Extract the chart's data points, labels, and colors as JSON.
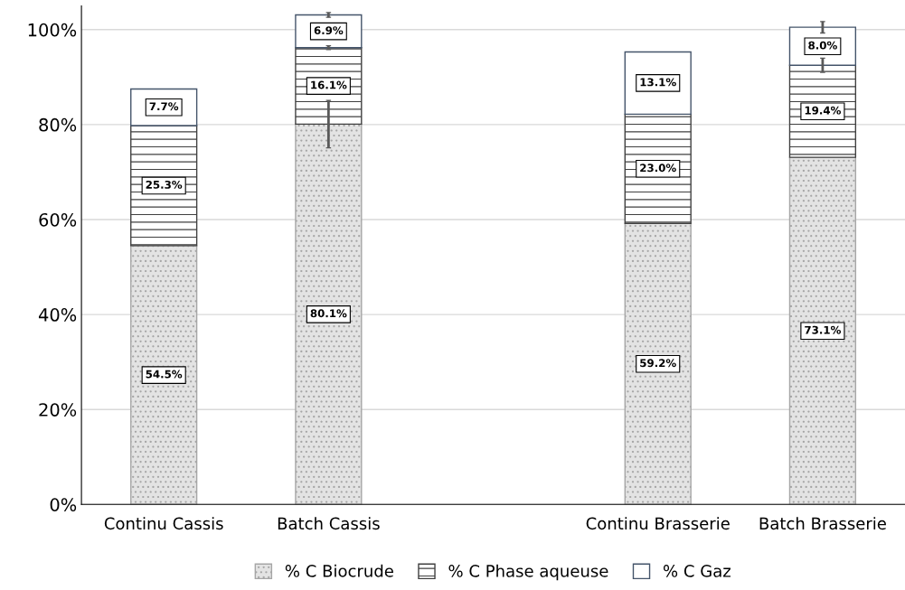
{
  "chart_data": {
    "type": "bar",
    "stacked": true,
    "categories": [
      "Continu Cassis",
      "Batch Cassis",
      null,
      "Continu Brasserie",
      "Batch Brasserie"
    ],
    "series": [
      {
        "name": "% C Biocrude",
        "color": "#a6a6a6",
        "values": [
          54.5,
          80.1,
          null,
          59.2,
          73.1
        ],
        "errors": [
          null,
          5.0,
          null,
          null,
          null
        ],
        "value_labels": [
          "54.5%",
          "80.1%",
          null,
          "59.2%",
          "73.1%"
        ]
      },
      {
        "name": "% C Phase aqueuse",
        "color": "#404040",
        "values": [
          25.3,
          16.1,
          null,
          23.0,
          19.4
        ],
        "errors": [
          null,
          0.4,
          null,
          null,
          1.5
        ],
        "value_labels": [
          "25.3%",
          "16.1%",
          null,
          "23.0%",
          "19.4%"
        ]
      },
      {
        "name": "% C Gaz",
        "color": "#ffffff",
        "values": [
          7.7,
          6.9,
          null,
          13.1,
          8.0
        ],
        "errors": [
          null,
          0.5,
          null,
          null,
          1.2
        ],
        "value_labels": [
          "7.7%",
          "6.9%",
          null,
          "13.1%",
          "8.0%"
        ]
      }
    ],
    "ylim": [
      0,
      105
    ],
    "yticks": [
      {
        "value": 0,
        "label": "0%"
      },
      {
        "value": 20,
        "label": "20%"
      },
      {
        "value": 40,
        "label": "40%"
      },
      {
        "value": 60,
        "label": "60%"
      },
      {
        "value": 80,
        "label": "80%"
      },
      {
        "value": 100,
        "label": "100%"
      }
    ],
    "grid": "y",
    "legend": "bottom"
  }
}
